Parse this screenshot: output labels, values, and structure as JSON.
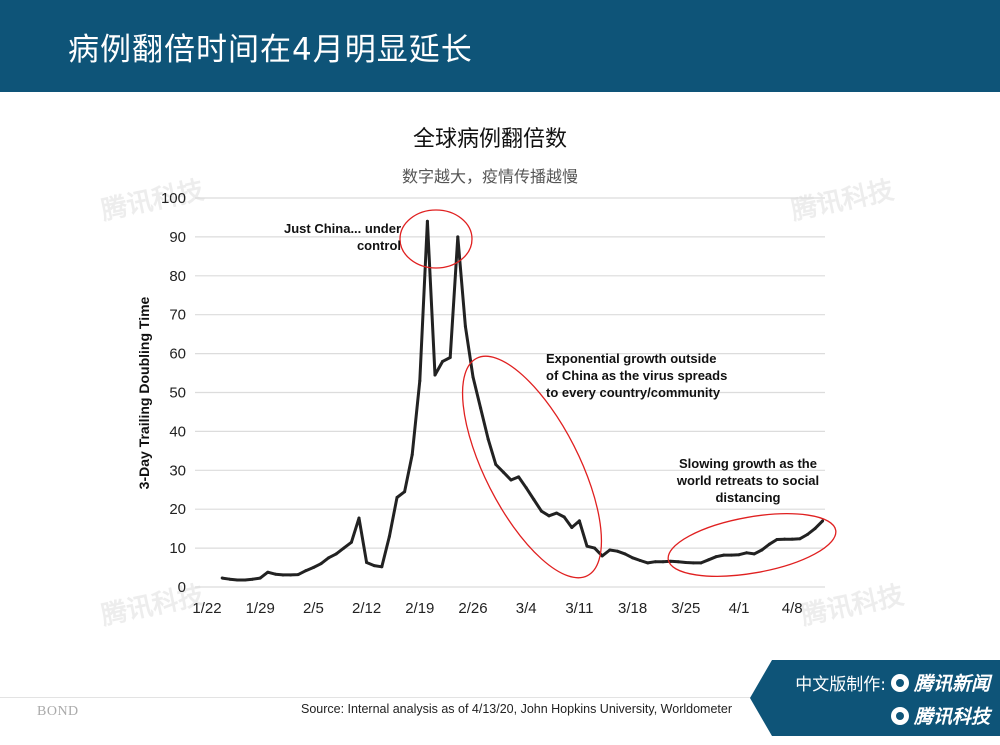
{
  "header": {
    "title": "病例翻倍时间在4月明显延长"
  },
  "chart_data": {
    "type": "line",
    "title": "全球病例翻倍数",
    "subtitle": "数字越大，疫情传播越慢",
    "ylabel": "3-Day Trailing Doubling Time",
    "xlabel": "",
    "ylim": [
      0,
      100
    ],
    "yticks": [
      0,
      10,
      20,
      30,
      40,
      50,
      60,
      70,
      80,
      90,
      100
    ],
    "xtick_labels": [
      "1/22",
      "1/29",
      "2/5",
      "2/12",
      "2/19",
      "2/26",
      "3/4",
      "3/11",
      "3/18",
      "3/25",
      "4/1",
      "4/8"
    ],
    "grid": true,
    "line_color": "#222222",
    "annotation_color": "#e02020",
    "x": [
      "1/24",
      "1/25",
      "1/26",
      "1/27",
      "1/28",
      "1/29",
      "1/30",
      "1/31",
      "2/1",
      "2/2",
      "2/3",
      "2/4",
      "2/5",
      "2/6",
      "2/7",
      "2/8",
      "2/9",
      "2/10",
      "2/11",
      "2/12",
      "2/13",
      "2/14",
      "2/15",
      "2/16",
      "2/17",
      "2/18",
      "2/19",
      "2/20",
      "2/21",
      "2/22",
      "2/23",
      "2/24",
      "2/25",
      "2/26",
      "2/27",
      "2/28",
      "2/29",
      "3/1",
      "3/2",
      "3/3",
      "3/4",
      "3/5",
      "3/6",
      "3/7",
      "3/8",
      "3/9",
      "3/10",
      "3/11",
      "3/12",
      "3/13",
      "3/14",
      "3/15",
      "3/16",
      "3/17",
      "3/18",
      "3/19",
      "3/20",
      "3/21",
      "3/22",
      "3/23",
      "3/24",
      "3/25",
      "3/26",
      "3/27",
      "3/28",
      "3/29",
      "3/30",
      "3/31",
      "4/1",
      "4/2",
      "4/3",
      "4/4",
      "4/5",
      "4/6",
      "4/7",
      "4/8",
      "4/9",
      "4/10",
      "4/11",
      "4/12"
    ],
    "values": [
      2.3,
      2.0,
      1.8,
      1.8,
      2.0,
      2.3,
      3.8,
      3.3,
      3.1,
      3.1,
      3.2,
      4.2,
      5.0,
      6.0,
      7.5,
      8.5,
      10.0,
      11.5,
      17.7,
      6.3,
      5.5,
      5.2,
      13.0,
      23.0,
      24.5,
      34.0,
      53.0,
      94.0,
      54.5,
      58.0,
      59.0,
      90.0,
      67.0,
      54.0,
      46.0,
      38.0,
      31.5,
      29.5,
      27.5,
      28.3,
      25.5,
      22.5,
      19.5,
      18.3,
      19.0,
      18.0,
      15.3,
      17.0,
      10.5,
      10.0,
      8.0,
      9.5,
      9.2,
      8.5,
      7.5,
      6.8,
      6.2,
      6.5,
      6.5,
      6.6,
      6.5,
      6.3,
      6.2,
      6.2,
      7.0,
      7.8,
      8.2,
      8.2,
      8.3,
      8.8,
      8.5,
      9.5,
      11.0,
      12.2,
      12.3,
      12.3,
      12.4,
      13.5,
      15.0,
      17.0
    ],
    "annotations": [
      {
        "text1": "Just China... under",
        "text2": "control"
      },
      {
        "text1": "Exponential growth outside",
        "text2": "of China as the virus spreads",
        "text3": "to every country/community"
      },
      {
        "text1": "Slowing growth as the",
        "text2": "world retreats to social",
        "text3": "distancing"
      }
    ]
  },
  "footer": {
    "source": "Source: Internal analysis as of 4/13/20, John Hopkins University, Worldometer",
    "bond_logo": "BOND",
    "badge_label": "中文版制作:",
    "badge_brand1": "腾讯新闻",
    "badge_brand2": "腾讯科技"
  },
  "watermark": "腾讯科技"
}
